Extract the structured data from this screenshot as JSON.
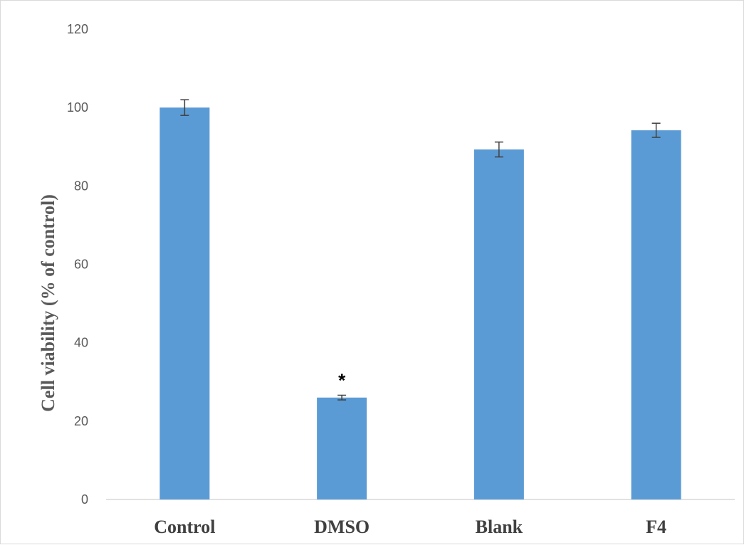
{
  "chart_data": {
    "type": "bar",
    "title": "",
    "xlabel": "",
    "ylabel": "Cell viability (% of control)",
    "categories": [
      "Control",
      "DMSO",
      "Blank",
      "F4"
    ],
    "values": [
      100,
      26,
      89.3,
      94.2
    ],
    "errors": [
      2.0,
      0.6,
      1.9,
      1.8
    ],
    "annotations": [
      "",
      "*",
      "",
      ""
    ],
    "ylim": [
      0,
      120
    ],
    "yticks": [
      0,
      20,
      40,
      60,
      80,
      100,
      120
    ],
    "grid": false,
    "legend": "none",
    "bar_color": "#5b9bd5",
    "error_color": "#404040"
  }
}
